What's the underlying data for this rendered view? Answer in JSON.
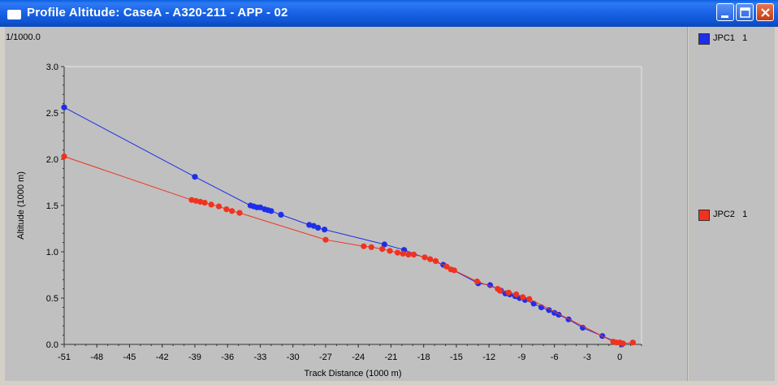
{
  "window": {
    "title": "Profile Altitude: CaseA - A320-211 - APP - 02"
  },
  "scale_label": "1/1000.0",
  "legend": [
    {
      "name": "JPC1",
      "count": "1",
      "color": "#1f2ee8"
    },
    {
      "name": "JPC2",
      "count": "1",
      "color": "#f0321e"
    }
  ],
  "chart_data": {
    "type": "line",
    "xlabel": "Track Distance (1000 m)",
    "ylabel": "Altitude (1000 m)",
    "xlim": [
      -51,
      2
    ],
    "ylim": [
      0,
      3
    ],
    "xticks": [
      "-51",
      "-48",
      "-45",
      "-42",
      "-39",
      "-36",
      "-33",
      "-30",
      "-27",
      "-24",
      "-21",
      "-18",
      "-15",
      "-12",
      "-9",
      "-6",
      "-3",
      "0"
    ],
    "yticks": [
      "0.0",
      "0.5",
      "1.0",
      "1.5",
      "2.0",
      "2.5",
      "3.0"
    ],
    "series": [
      {
        "name": "JPC1",
        "color": "#1f2ee8",
        "points": [
          [
            -51.0,
            2.56
          ],
          [
            -39.0,
            1.81
          ],
          [
            -33.9,
            1.5
          ],
          [
            -33.6,
            1.49
          ],
          [
            -33.3,
            1.48
          ],
          [
            -33.0,
            1.48
          ],
          [
            -32.6,
            1.46
          ],
          [
            -32.3,
            1.45
          ],
          [
            -32.0,
            1.44
          ],
          [
            -31.1,
            1.4
          ],
          [
            -28.5,
            1.29
          ],
          [
            -28.1,
            1.28
          ],
          [
            -27.7,
            1.26
          ],
          [
            -27.1,
            1.24
          ],
          [
            -21.6,
            1.08
          ],
          [
            -19.8,
            1.02
          ],
          [
            -16.2,
            0.86
          ],
          [
            -13.0,
            0.66
          ],
          [
            -11.9,
            0.64
          ],
          [
            -10.9,
            0.58
          ],
          [
            -10.5,
            0.55
          ],
          [
            -10.1,
            0.54
          ],
          [
            -9.6,
            0.52
          ],
          [
            -9.2,
            0.5
          ],
          [
            -8.7,
            0.48
          ],
          [
            -7.9,
            0.44
          ],
          [
            -7.2,
            0.4
          ],
          [
            -6.5,
            0.37
          ],
          [
            -6.0,
            0.34
          ],
          [
            -5.6,
            0.32
          ],
          [
            -4.7,
            0.27
          ],
          [
            -3.4,
            0.18
          ],
          [
            -1.6,
            0.09
          ],
          [
            0.2,
            0.0
          ]
        ]
      },
      {
        "name": "JPC2",
        "color": "#f0321e",
        "points": [
          [
            -51.0,
            2.03
          ],
          [
            -39.3,
            1.56
          ],
          [
            -38.9,
            1.55
          ],
          [
            -38.5,
            1.54
          ],
          [
            -38.1,
            1.53
          ],
          [
            -37.5,
            1.51
          ],
          [
            -36.8,
            1.49
          ],
          [
            -36.1,
            1.46
          ],
          [
            -35.6,
            1.44
          ],
          [
            -34.9,
            1.42
          ],
          [
            -27.0,
            1.13
          ],
          [
            -23.5,
            1.06
          ],
          [
            -22.8,
            1.05
          ],
          [
            -21.8,
            1.03
          ],
          [
            -21.1,
            1.01
          ],
          [
            -20.4,
            0.99
          ],
          [
            -19.9,
            0.98
          ],
          [
            -19.4,
            0.97
          ],
          [
            -18.9,
            0.97
          ],
          [
            -17.9,
            0.94
          ],
          [
            -17.4,
            0.92
          ],
          [
            -16.9,
            0.9
          ],
          [
            -15.9,
            0.84
          ],
          [
            -15.5,
            0.81
          ],
          [
            -15.2,
            0.8
          ],
          [
            -13.1,
            0.68
          ],
          [
            -11.2,
            0.6
          ],
          [
            -11.0,
            0.58
          ],
          [
            -10.2,
            0.56
          ],
          [
            -9.5,
            0.54
          ],
          [
            -8.9,
            0.51
          ],
          [
            -8.3,
            0.49
          ],
          [
            -0.6,
            0.03
          ],
          [
            -0.3,
            0.02
          ],
          [
            0.0,
            0.02
          ],
          [
            0.3,
            0.01
          ],
          [
            1.2,
            0.02
          ]
        ]
      }
    ]
  }
}
